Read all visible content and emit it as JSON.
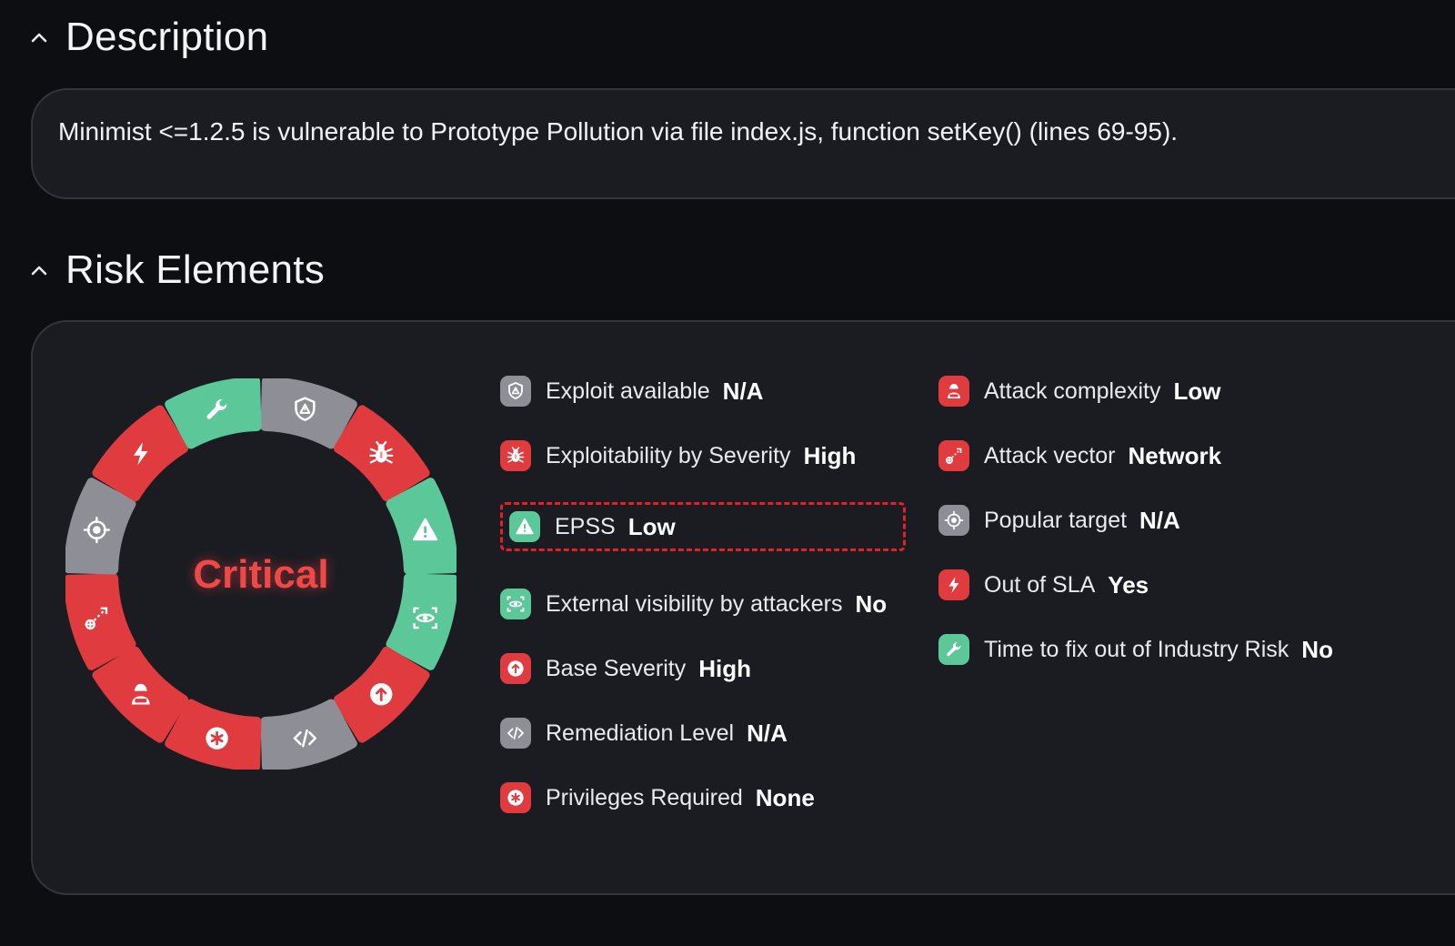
{
  "description": {
    "title": "Description",
    "text": "Minimist <=1.2.5 is vulnerable to Prototype Pollution via file index.js, function setKey() (lines 69-95)."
  },
  "risk": {
    "title": "Risk Elements",
    "severity_label": "Critical",
    "colors": {
      "red": "#e03b3f",
      "green": "#5cc89a",
      "gray": "#8e8f96",
      "highlight": "#e0232b"
    },
    "wheel_segments": [
      {
        "icon": "shield-alert-icon",
        "color": "gray"
      },
      {
        "icon": "bug-icon",
        "color": "red"
      },
      {
        "icon": "warning-triangle-icon",
        "color": "green"
      },
      {
        "icon": "eye-scan-icon",
        "color": "green"
      },
      {
        "icon": "arrow-up-circle-icon",
        "color": "red"
      },
      {
        "icon": "code-icon",
        "color": "gray"
      },
      {
        "icon": "asterisk-icon",
        "color": "red"
      },
      {
        "icon": "hacker-icon",
        "color": "red"
      },
      {
        "icon": "attack-vector-icon",
        "color": "red"
      },
      {
        "icon": "crosshair-icon",
        "color": "gray"
      },
      {
        "icon": "lightning-icon",
        "color": "red"
      },
      {
        "icon": "wrench-icon",
        "color": "green"
      }
    ],
    "left_items": [
      {
        "label": "Exploit available",
        "value": "N/A",
        "icon": "shield-alert-icon",
        "color": "gray"
      },
      {
        "label": "Exploitability by Severity",
        "value": "High",
        "icon": "bug-icon",
        "color": "red"
      },
      {
        "label": "EPSS",
        "value": "Low",
        "icon": "warning-triangle-icon",
        "color": "green"
      },
      {
        "label": "External visibility by attackers",
        "value": "No",
        "icon": "eye-scan-icon",
        "color": "green"
      },
      {
        "label": "Base Severity",
        "value": "High",
        "icon": "arrow-up-circle-icon",
        "color": "red"
      },
      {
        "label": "Remediation Level",
        "value": "N/A",
        "icon": "code-icon",
        "color": "gray"
      },
      {
        "label": "Privileges Required",
        "value": "None",
        "icon": "asterisk-icon",
        "color": "red"
      }
    ],
    "right_items": [
      {
        "label": "Attack complexity",
        "value": "Low",
        "icon": "hacker-icon",
        "color": "red"
      },
      {
        "label": "Attack vector",
        "value": "Network",
        "icon": "attack-vector-icon",
        "color": "red"
      },
      {
        "label": "Popular target",
        "value": "N/A",
        "icon": "crosshair-icon",
        "color": "gray"
      },
      {
        "label": "Out of SLA",
        "value": "Yes",
        "icon": "lightning-icon",
        "color": "red"
      },
      {
        "label": "Time to fix out of Industry Risk",
        "value": "No",
        "icon": "wrench-icon",
        "color": "green"
      }
    ]
  }
}
